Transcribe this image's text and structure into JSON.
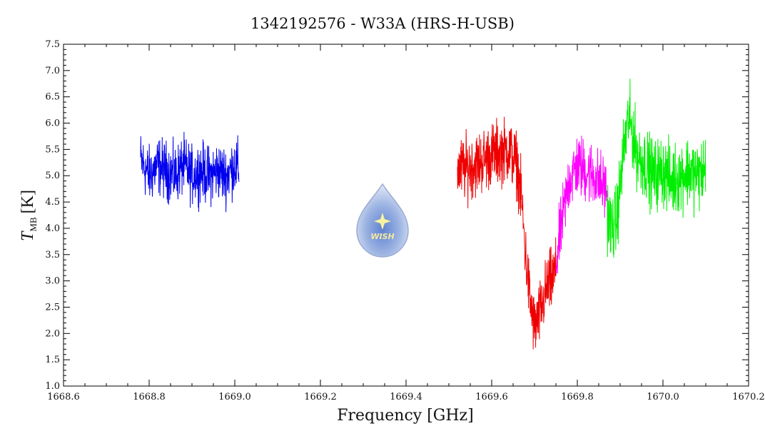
{
  "chart_data": {
    "type": "line",
    "title": "1342192576 - W33A (HRS-H-USB)",
    "xlabel": "Frequency [GHz]",
    "ylabel_main": "T",
    "ylabel_sub": "MB",
    "ylabel_unit": "[K]",
    "xlim": [
      1668.6,
      1670.2
    ],
    "ylim": [
      1.0,
      7.5
    ],
    "xticks": [
      "1668.6",
      "1668.8",
      "1669.0",
      "1669.2",
      "1669.4",
      "1669.6",
      "1669.8",
      "1670.0",
      "1670.2"
    ],
    "yticks": [
      "1.0",
      "1.5",
      "2.0",
      "2.5",
      "3.0",
      "3.5",
      "4.0",
      "4.5",
      "5.0",
      "5.5",
      "6.0",
      "6.5",
      "7.0",
      "7.5"
    ],
    "grid": false,
    "series": [
      {
        "color": "#0000ee",
        "x": [
          1668.78,
          1668.8,
          1668.82,
          1668.84,
          1668.86,
          1668.88,
          1668.9,
          1668.92,
          1668.94,
          1668.96,
          1668.98,
          1669.0,
          1669.01
        ],
        "y": [
          5.3,
          5.0,
          5.2,
          5.1,
          5.0,
          5.2,
          5.0,
          5.1,
          5.0,
          5.1,
          5.0,
          5.2,
          5.1
        ],
        "noise": 0.45
      },
      {
        "color": "#ee0000",
        "x": [
          1669.52,
          1669.56,
          1669.6,
          1669.64,
          1669.66,
          1669.67,
          1669.68,
          1669.69,
          1669.7,
          1669.71,
          1669.72,
          1669.73,
          1669.74,
          1669.75
        ],
        "y": [
          5.1,
          5.2,
          5.4,
          5.5,
          5.2,
          4.5,
          3.4,
          2.6,
          2.1,
          2.3,
          2.6,
          2.9,
          3.0,
          3.2
        ],
        "noise": 0.5
      },
      {
        "color": "#ff00ff",
        "x": [
          1669.75,
          1669.76,
          1669.77,
          1669.78,
          1669.8,
          1669.82,
          1669.84,
          1669.86,
          1669.87
        ],
        "y": [
          3.3,
          3.9,
          4.4,
          4.9,
          5.2,
          5.1,
          5.0,
          4.8,
          4.7
        ],
        "noise": 0.5
      },
      {
        "color": "#00ee00",
        "x": [
          1669.87,
          1669.88,
          1669.89,
          1669.9,
          1669.91,
          1669.92,
          1669.93,
          1669.94,
          1669.96,
          1669.98,
          1670.0,
          1670.02,
          1670.04,
          1670.06,
          1670.08,
          1670.1
        ],
        "y": [
          4.3,
          4.0,
          4.1,
          4.8,
          5.6,
          6.1,
          5.8,
          5.4,
          5.2,
          5.0,
          5.1,
          4.9,
          5.0,
          5.1,
          5.0,
          5.1
        ],
        "noise": 0.55
      }
    ]
  },
  "logo": {
    "text": "WISH",
    "colors": {
      "body": "#b6c9ea",
      "center": "#6e8fd6",
      "star": "#f6f2a0",
      "text": "#f4e9a0"
    }
  }
}
